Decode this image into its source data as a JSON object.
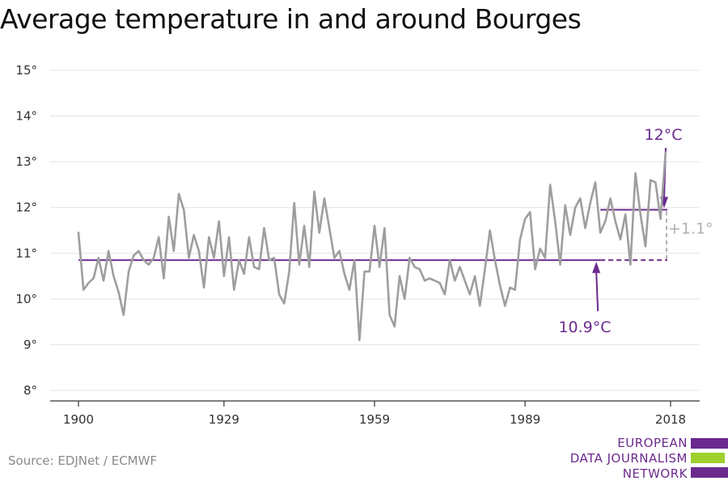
{
  "title": "Average temperature in and around Bourges",
  "source": "Source: EDJNet / ECMWF",
  "logo": {
    "lines": [
      "EUROPEAN",
      "DATA JOURNALISM",
      "NETWORK"
    ]
  },
  "colors": {
    "series": "#9e9e9e",
    "reference": "#6b2a8e",
    "grid": "#e3e3e3",
    "logo_green": "#9ed12c"
  },
  "chart_data": {
    "type": "line",
    "x_ticks": [
      1900,
      1929,
      1959,
      1989,
      2018
    ],
    "y_ticks": [
      8,
      9,
      10,
      11,
      12,
      13,
      14,
      15
    ],
    "y_tick_labels": [
      "8°",
      "9°",
      "10°",
      "11°",
      "12°",
      "13°",
      "14°",
      "15°"
    ],
    "xlim": [
      1900,
      2018
    ],
    "ylim": [
      8,
      15
    ],
    "grid": true,
    "series": [
      {
        "x_start": 1900,
        "values": [
          11.45,
          10.2,
          10.35,
          10.45,
          10.9,
          10.4,
          11.05,
          10.5,
          10.15,
          9.65,
          10.6,
          10.95,
          11.05,
          10.85,
          10.75,
          10.9,
          11.35,
          10.45,
          11.8,
          11.05,
          12.3,
          11.95,
          10.9,
          11.4,
          11.05,
          10.25,
          11.35,
          10.9,
          11.7,
          10.5,
          11.35,
          10.2,
          10.85,
          10.55,
          11.35,
          10.7,
          10.65,
          11.55,
          10.85,
          10.9,
          10.1,
          9.9,
          10.6,
          12.1,
          10.75,
          11.6,
          10.7,
          12.35,
          11.45,
          12.2,
          11.55,
          10.9,
          11.05,
          10.55,
          10.2,
          10.85,
          9.1,
          10.6,
          10.6,
          11.6,
          10.7,
          11.55,
          9.65,
          9.4,
          10.5,
          10.0,
          10.9,
          10.7,
          10.65,
          10.4,
          10.45,
          10.4,
          10.35,
          10.1,
          10.85,
          10.4,
          10.7,
          10.4,
          10.1,
          10.5,
          9.85,
          10.65,
          11.5,
          10.85,
          10.3,
          9.85,
          10.25,
          10.2,
          11.3,
          11.75,
          11.9,
          10.65,
          11.1,
          10.9,
          12.5,
          11.7,
          10.75,
          12.05,
          11.4,
          12.0,
          12.2,
          11.55,
          12.1,
          12.55,
          11.45,
          11.7,
          12.2,
          11.7,
          11.3,
          11.85,
          10.75,
          12.75,
          11.85,
          11.15,
          12.6,
          12.55,
          11.75,
          13.2
        ]
      }
    ],
    "reference_lines": [
      {
        "label": "10.9°C",
        "value": 10.85,
        "from": 1900,
        "to": 2018,
        "solid_until": 2004
      },
      {
        "label": "12°C",
        "value": 11.95,
        "from": 2004,
        "to": 2018
      }
    ],
    "annotations": [
      {
        "text": "12°C"
      },
      {
        "text": "10.9°C"
      },
      {
        "text": "+1.1°"
      }
    ]
  }
}
